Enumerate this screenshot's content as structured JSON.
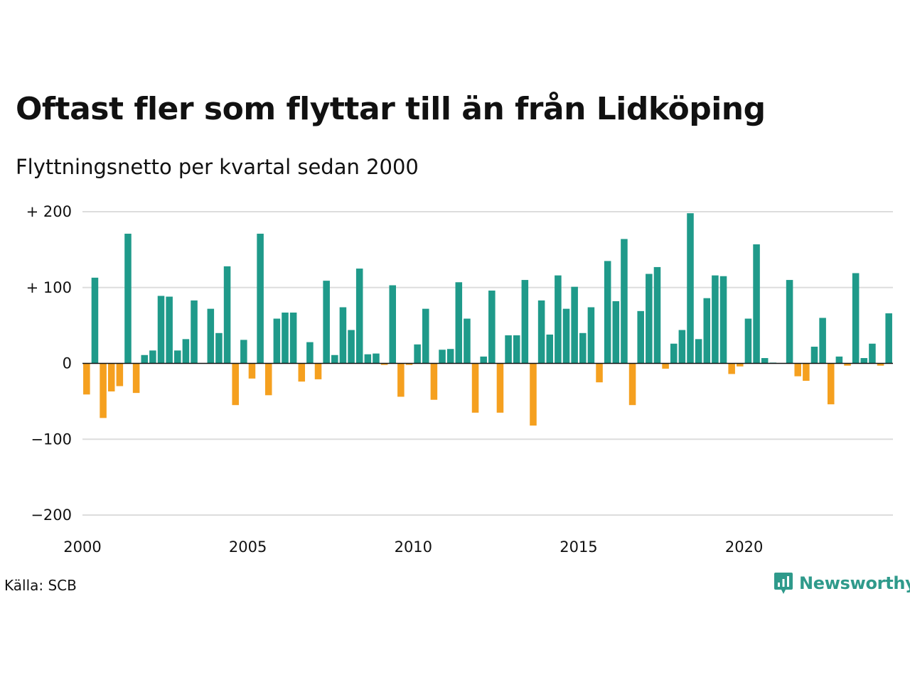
{
  "title": "Oftast fler som flyttar till än från Lidköping",
  "subtitle": "Flyttningsnetto per kvartal sedan 2000",
  "source": "Källa: SCB",
  "brand": {
    "name": "Newsworthy",
    "icon": "newsworthy-logo-icon"
  },
  "colors": {
    "positive": "#1f9a8a",
    "negative": "#f5a01f",
    "grid": "#dddddd",
    "zero": "#111111",
    "brand": "#2f9a8b"
  },
  "chart_data": {
    "type": "bar",
    "title": "Oftast fler som flyttar till än från Lidköping",
    "subtitle": "Flyttningsnetto per kvartal sedan 2000",
    "xlabel": "",
    "ylabel": "",
    "start": "2000 Q1",
    "frequency": "quarterly",
    "ylim": [
      -200,
      200
    ],
    "xlim": [
      2000,
      2024.5
    ],
    "y_ticks": [
      200,
      100,
      0,
      -100,
      -200
    ],
    "y_tick_labels": [
      "+ 200",
      "+ 100",
      "0",
      "−100",
      "−200"
    ],
    "x_ticks": [
      2000,
      2005,
      2010,
      2015,
      2020
    ],
    "x_tick_labels": [
      "2000",
      "2005",
      "2010",
      "2015",
      "2020"
    ],
    "grid": true,
    "legend": "none",
    "values": [
      -41,
      113,
      -72,
      -37,
      -30,
      171,
      -39,
      11,
      17,
      89,
      88,
      17,
      32,
      83,
      0,
      72,
      40,
      128,
      -55,
      31,
      -20,
      171,
      -42,
      59,
      67,
      67,
      -24,
      28,
      -21,
      109,
      11,
      74,
      44,
      125,
      12,
      13,
      -2,
      103,
      -44,
      -2,
      25,
      72,
      -48,
      18,
      19,
      107,
      59,
      -65,
      9,
      96,
      -65,
      37,
      37,
      110,
      -82,
      83,
      38,
      116,
      72,
      101,
      40,
      74,
      -25,
      135,
      82,
      164,
      -55,
      69,
      118,
      127,
      -7,
      26,
      44,
      198,
      32,
      86,
      116,
      115,
      -14,
      -4,
      59,
      157,
      7,
      1,
      0,
      110,
      -17,
      -23,
      22,
      60,
      -54,
      9,
      -3,
      119,
      7,
      26,
      -3,
      66
    ]
  }
}
